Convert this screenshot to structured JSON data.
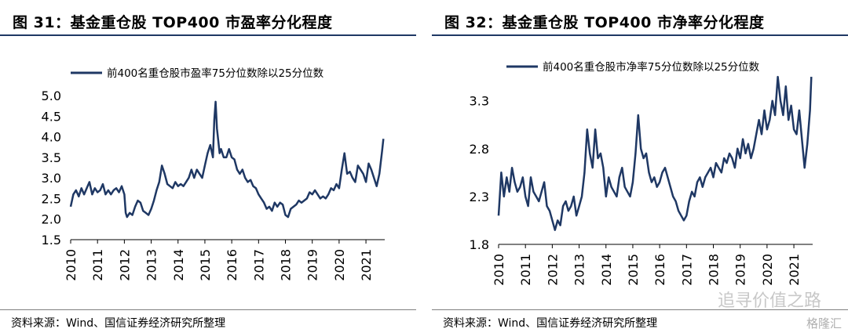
{
  "charts": [
    {
      "figure_title": "图 31：基金重仓股 TOP400 市盈率分化程度",
      "source": "资料来源：Wind、国信证券经济研究所整理"
    },
    {
      "figure_title": "图 32：基金重仓股 TOP400 市净率分化程度",
      "source": "资料来源：Wind、国信证券经济研究所整理"
    }
  ],
  "watermark": {
    "account": "追寻价值之路",
    "brand": "格隆汇"
  },
  "series_color": "#1f3864",
  "chart_data": [
    {
      "type": "line",
      "legend": "前400名重仓股市盈率75分位数除以25分位数",
      "x_ticks": [
        "2010",
        "2011",
        "2012",
        "2013",
        "2014",
        "2015",
        "2016",
        "2017",
        "2018",
        "2019",
        "2020",
        "2021"
      ],
      "y_ticks": [
        "1.5",
        "2.0",
        "2.5",
        "3.0",
        "3.5",
        "4.0",
        "4.5",
        "5.0"
      ],
      "xlim": [
        2010,
        2021.7
      ],
      "ylim": [
        1.5,
        5.0
      ],
      "series": [
        {
          "x": [
            2010.0,
            2010.1,
            2010.2,
            2010.3,
            2010.4,
            2010.5,
            2010.6,
            2010.7,
            2010.8,
            2010.9,
            2011.0,
            2011.1,
            2011.2,
            2011.3,
            2011.4,
            2011.5,
            2011.6,
            2011.7,
            2011.8,
            2011.9,
            2012.0,
            2012.05,
            2012.1,
            2012.2,
            2012.3,
            2012.4,
            2012.5,
            2012.6,
            2012.7,
            2012.8,
            2012.9,
            2013.0,
            2013.1,
            2013.2,
            2013.3,
            2013.4,
            2013.5,
            2013.6,
            2013.7,
            2013.8,
            2013.9,
            2014.0,
            2014.1,
            2014.2,
            2014.3,
            2014.4,
            2014.5,
            2014.6,
            2014.7,
            2014.8,
            2014.9,
            2015.0,
            2015.1,
            2015.2,
            2015.3,
            2015.35,
            2015.4,
            2015.45,
            2015.5,
            2015.55,
            2015.6,
            2015.7,
            2015.8,
            2015.9,
            2016.0,
            2016.1,
            2016.2,
            2016.3,
            2016.4,
            2016.5,
            2016.6,
            2016.7,
            2016.8,
            2016.9,
            2017.0,
            2017.1,
            2017.2,
            2017.3,
            2017.4,
            2017.5,
            2017.6,
            2017.7,
            2017.8,
            2017.9,
            2018.0,
            2018.1,
            2018.2,
            2018.3,
            2018.4,
            2018.5,
            2018.6,
            2018.7,
            2018.8,
            2018.9,
            2019.0,
            2019.1,
            2019.2,
            2019.3,
            2019.4,
            2019.5,
            2019.6,
            2019.7,
            2019.8,
            2019.9,
            2020.0,
            2020.1,
            2020.2,
            2020.3,
            2020.4,
            2020.5,
            2020.6,
            2020.7,
            2020.8,
            2020.9,
            2021.0,
            2021.1,
            2021.2,
            2021.3,
            2021.4,
            2021.5,
            2021.6,
            2021.65
          ],
          "y": [
            2.3,
            2.6,
            2.7,
            2.55,
            2.75,
            2.6,
            2.75,
            2.9,
            2.6,
            2.75,
            2.65,
            2.7,
            2.85,
            2.6,
            2.7,
            2.6,
            2.7,
            2.75,
            2.65,
            2.8,
            2.6,
            2.15,
            2.05,
            2.15,
            2.1,
            2.3,
            2.45,
            2.4,
            2.2,
            2.15,
            2.1,
            2.25,
            2.45,
            2.7,
            2.9,
            3.3,
            3.1,
            2.85,
            2.8,
            2.75,
            2.9,
            2.8,
            2.85,
            2.8,
            2.9,
            3.0,
            3.2,
            3.0,
            3.2,
            3.1,
            3.0,
            3.3,
            3.6,
            3.8,
            3.5,
            4.4,
            4.85,
            4.2,
            3.9,
            3.6,
            3.7,
            3.5,
            3.5,
            3.7,
            3.5,
            3.45,
            3.2,
            3.1,
            3.2,
            3.0,
            2.9,
            2.95,
            2.8,
            2.75,
            2.6,
            2.5,
            2.4,
            2.25,
            2.3,
            2.2,
            2.4,
            2.3,
            2.4,
            2.35,
            2.1,
            2.05,
            2.25,
            2.3,
            2.35,
            2.45,
            2.4,
            2.45,
            2.5,
            2.65,
            2.6,
            2.7,
            2.6,
            2.5,
            2.55,
            2.5,
            2.6,
            2.75,
            2.7,
            2.85,
            2.75,
            3.2,
            3.6,
            3.1,
            3.15,
            3.0,
            2.9,
            3.3,
            3.2,
            3.1,
            2.9,
            3.35,
            3.2,
            3.0,
            2.8,
            3.1,
            3.65,
            3.95
          ]
        }
      ]
    },
    {
      "type": "line",
      "legend": "前400名重仓股市净率75分位数除以25分位数",
      "x_ticks": [
        "2010",
        "2011",
        "2012",
        "2013",
        "2014",
        "2015",
        "2016",
        "2017",
        "2018",
        "2019",
        "2020",
        "2021"
      ],
      "y_ticks": [
        "1.8",
        "2.3",
        "2.8",
        "3.3"
      ],
      "xlim": [
        2010,
        2021.7
      ],
      "ylim": [
        1.8,
        3.6
      ],
      "series": [
        {
          "x": [
            2010.0,
            2010.1,
            2010.2,
            2010.3,
            2010.4,
            2010.5,
            2010.6,
            2010.7,
            2010.8,
            2010.9,
            2011.0,
            2011.1,
            2011.2,
            2011.3,
            2011.4,
            2011.5,
            2011.6,
            2011.7,
            2011.8,
            2011.9,
            2012.0,
            2012.1,
            2012.2,
            2012.3,
            2012.4,
            2012.5,
            2012.6,
            2012.7,
            2012.8,
            2012.9,
            2013.0,
            2013.1,
            2013.2,
            2013.3,
            2013.4,
            2013.5,
            2013.6,
            2013.7,
            2013.8,
            2013.9,
            2014.0,
            2014.1,
            2014.2,
            2014.3,
            2014.4,
            2014.5,
            2014.6,
            2014.7,
            2014.8,
            2014.9,
            2015.0,
            2015.1,
            2015.2,
            2015.3,
            2015.4,
            2015.5,
            2015.6,
            2015.7,
            2015.8,
            2015.9,
            2016.0,
            2016.1,
            2016.2,
            2016.3,
            2016.4,
            2016.5,
            2016.6,
            2016.7,
            2016.8,
            2016.9,
            2017.0,
            2017.1,
            2017.2,
            2017.3,
            2017.4,
            2017.5,
            2017.6,
            2017.7,
            2017.8,
            2017.9,
            2018.0,
            2018.1,
            2018.2,
            2018.3,
            2018.4,
            2018.5,
            2018.6,
            2018.7,
            2018.8,
            2018.9,
            2019.0,
            2019.1,
            2019.2,
            2019.3,
            2019.4,
            2019.5,
            2019.6,
            2019.7,
            2019.8,
            2019.9,
            2020.0,
            2020.1,
            2020.2,
            2020.3,
            2020.4,
            2020.5,
            2020.6,
            2020.7,
            2020.8,
            2020.9,
            2021.0,
            2021.1,
            2021.2,
            2021.3,
            2021.4,
            2021.5,
            2021.6,
            2021.65
          ],
          "y": [
            2.1,
            2.55,
            2.3,
            2.5,
            2.35,
            2.6,
            2.45,
            2.35,
            2.4,
            2.5,
            2.3,
            2.2,
            2.5,
            2.35,
            2.3,
            2.25,
            2.35,
            2.45,
            2.2,
            2.15,
            2.05,
            1.95,
            2.05,
            2.0,
            2.2,
            2.25,
            2.15,
            2.2,
            2.3,
            2.1,
            2.2,
            2.3,
            2.55,
            3.0,
            2.75,
            2.6,
            3.0,
            2.7,
            2.75,
            2.6,
            2.3,
            2.5,
            2.4,
            2.35,
            2.3,
            2.5,
            2.6,
            2.4,
            2.35,
            2.3,
            2.45,
            2.75,
            3.15,
            2.8,
            2.7,
            2.75,
            2.55,
            2.45,
            2.5,
            2.4,
            2.45,
            2.55,
            2.6,
            2.5,
            2.4,
            2.3,
            2.25,
            2.15,
            2.1,
            2.05,
            2.1,
            2.25,
            2.35,
            2.3,
            2.45,
            2.5,
            2.4,
            2.5,
            2.55,
            2.6,
            2.5,
            2.65,
            2.6,
            2.55,
            2.7,
            2.65,
            2.75,
            2.7,
            2.6,
            2.8,
            2.7,
            2.9,
            2.75,
            2.85,
            2.7,
            2.8,
            2.95,
            3.1,
            2.95,
            3.2,
            3.0,
            3.1,
            3.3,
            3.15,
            3.55,
            3.3,
            3.15,
            3.45,
            3.1,
            3.25,
            3.0,
            2.95,
            3.2,
            2.9,
            2.6,
            2.85,
            3.2,
            3.55
          ]
        }
      ]
    }
  ]
}
